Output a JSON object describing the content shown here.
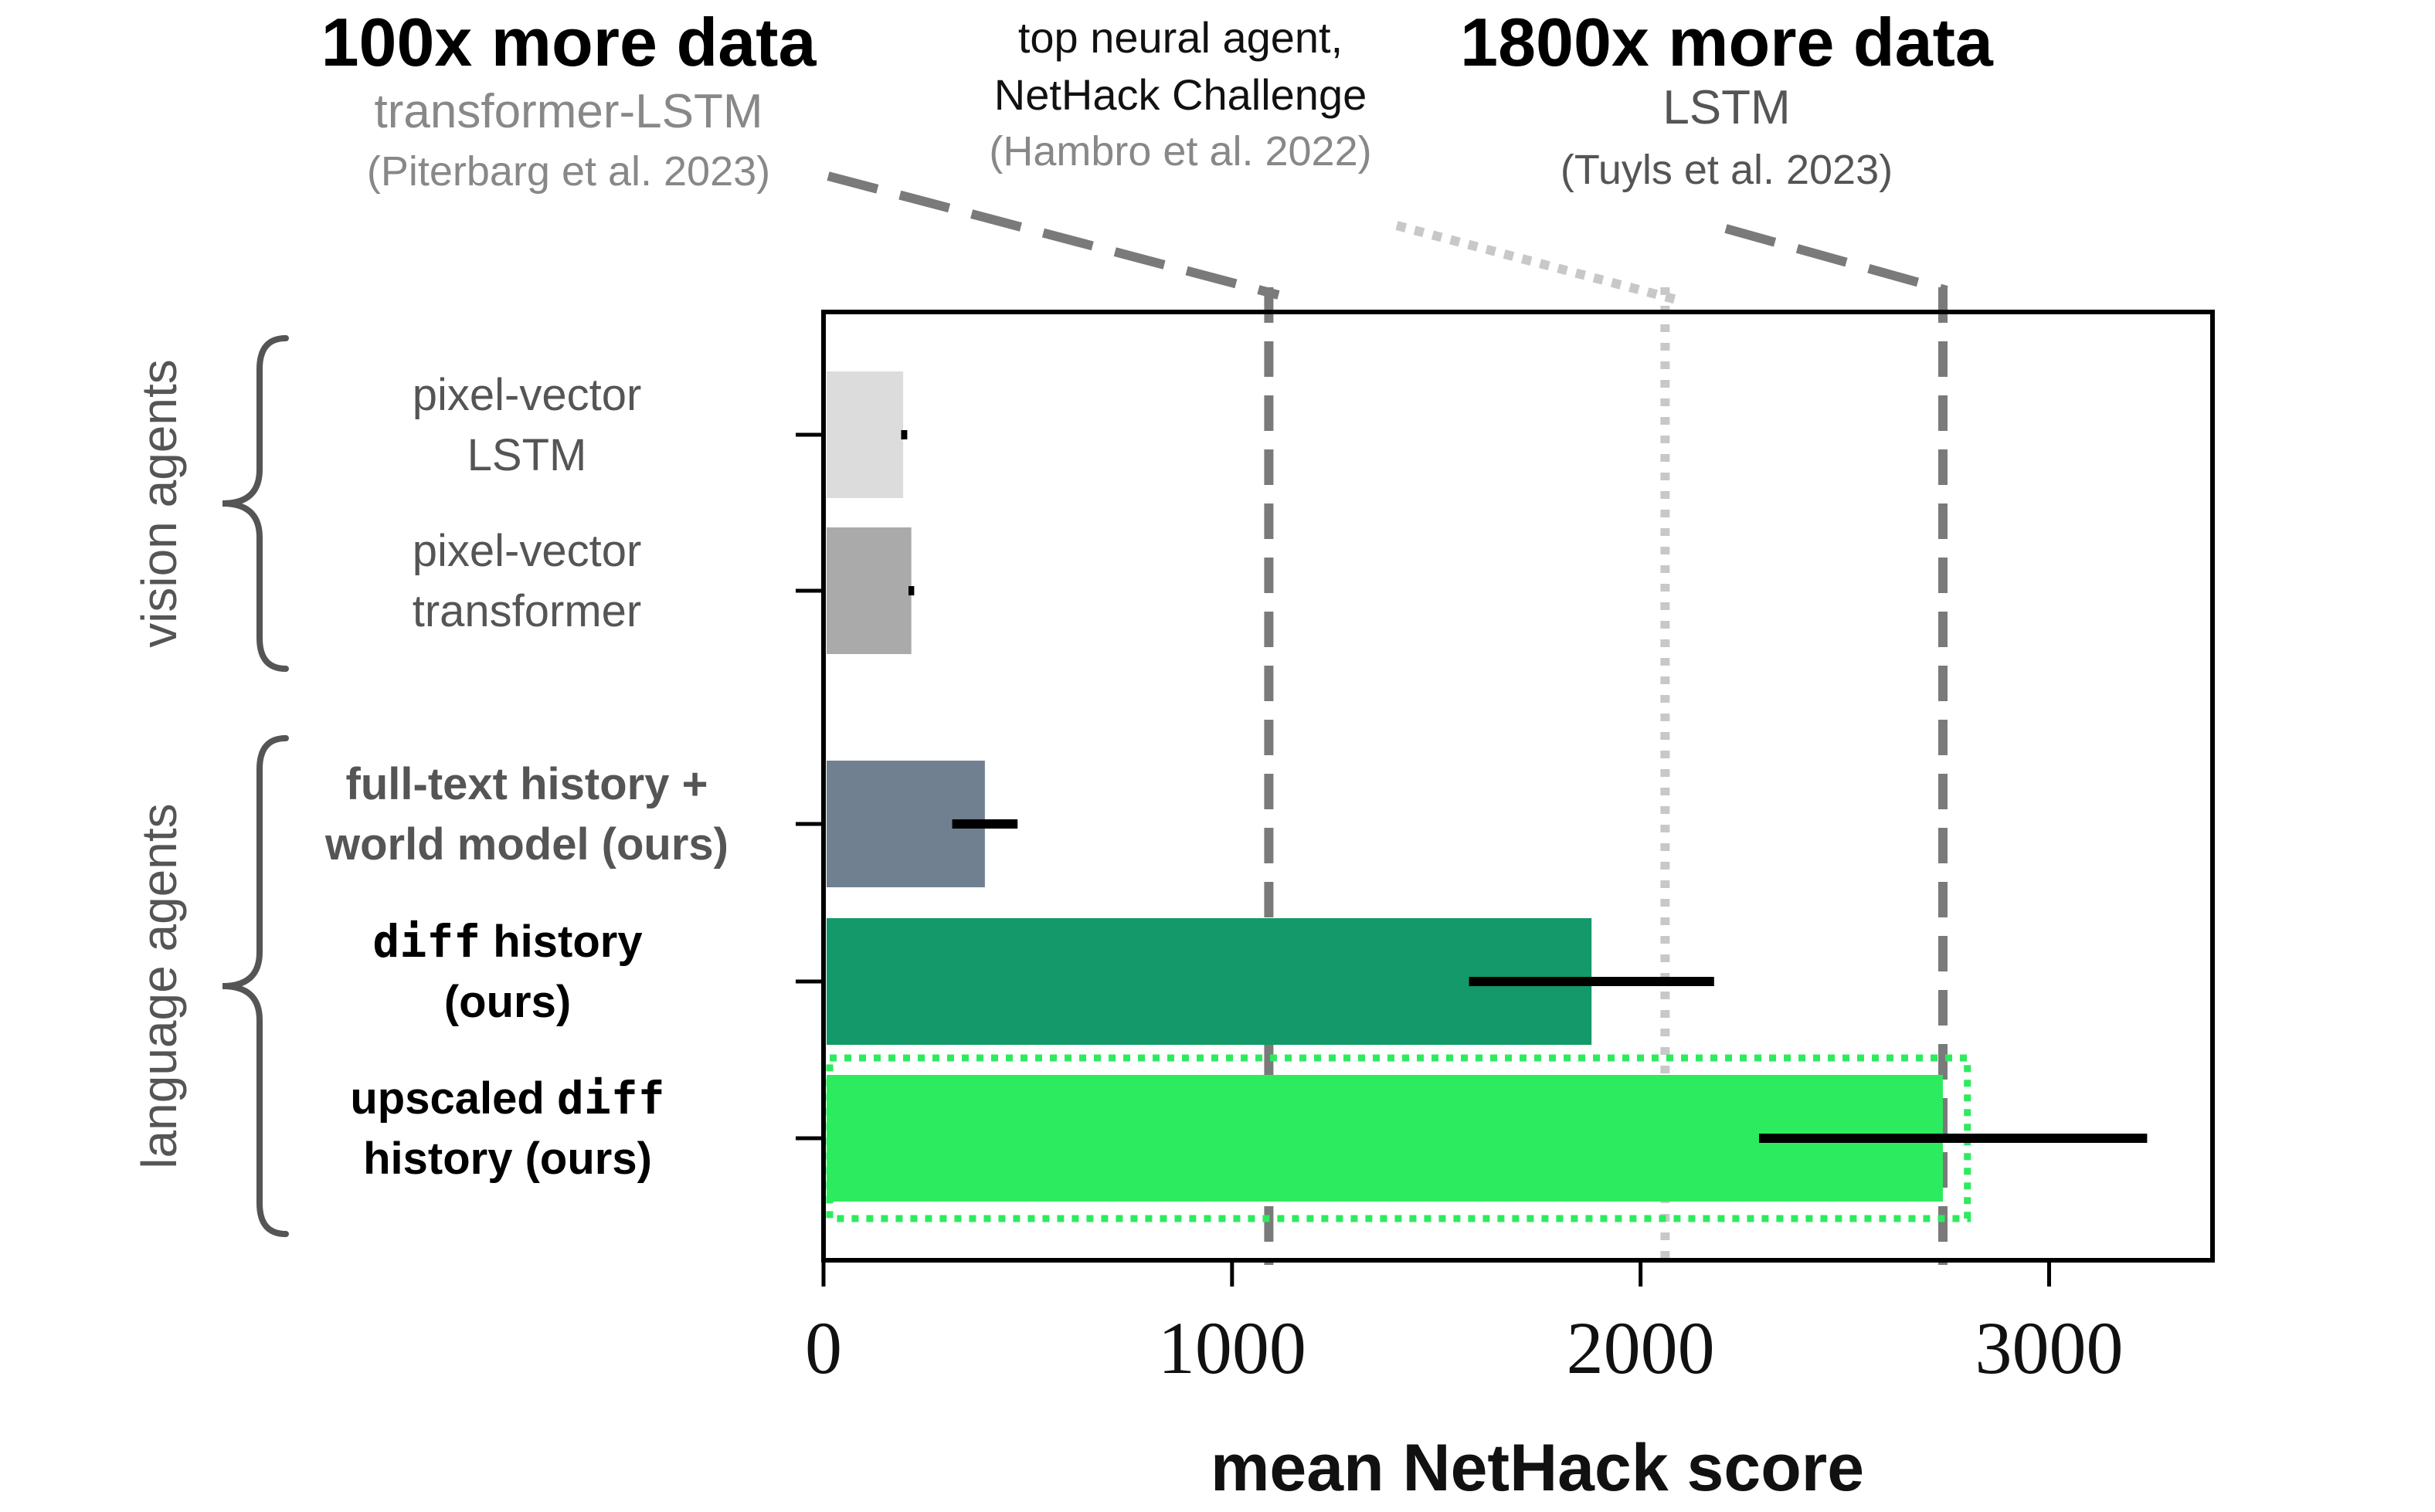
{
  "chart_data": {
    "type": "bar",
    "orientation": "horizontal",
    "xlabel": "mean NetHack score",
    "xlim": [
      0,
      3400
    ],
    "xticks": [
      0,
      1000,
      2000,
      3000
    ],
    "tick_labels": [
      "0",
      "1000",
      "2000",
      "3000"
    ],
    "groups": [
      {
        "label": "vision agents",
        "bars": [
          0,
          1
        ]
      },
      {
        "label": "language agents",
        "bars": [
          2,
          3,
          4
        ]
      }
    ],
    "bars": [
      {
        "label_lines": [
          "pixel-vector",
          "LSTM"
        ],
        "value": 195,
        "err_low": 190,
        "err_high": 205,
        "color": "#dcdcdc",
        "label_color": "#555555",
        "bold": false
      },
      {
        "label_lines": [
          "pixel-vector",
          "transformer"
        ],
        "value": 215,
        "err_low": 208,
        "err_high": 222,
        "color": "#aaaaaa",
        "label_color": "#555555",
        "bold": false
      },
      {
        "label_lines": [
          "full-text history +",
          "world model (ours)"
        ],
        "value": 395,
        "err_low": 315,
        "err_high": 475,
        "color": "#708090",
        "label_color": "#555555",
        "bold": true
      },
      {
        "label_lines": [
          [
            "diff",
            " history"
          ],
          "(ours)"
        ],
        "value": 1880,
        "err_low": 1580,
        "err_high": 2180,
        "color": "#14996a",
        "label_color": "#000000",
        "bold": true
      },
      {
        "label_lines": [
          [
            "upscaled ",
            "diff"
          ],
          "history (ours)"
        ],
        "value": 2740,
        "err_low": 2290,
        "err_high": 3240,
        "color": "#2deb5e",
        "label_color": "#000000",
        "bold": true,
        "highlight_box": [
          0,
          2800
        ]
      }
    ],
    "reference_lines": [
      {
        "value": 1090,
        "style": "dashed",
        "color": "#7a7a7a",
        "headline": "100x more data",
        "model": "transformer-LSTM",
        "citation": "(Piterbarg et al. 2023)"
      },
      {
        "value": 2060,
        "style": "dotted",
        "color": "#c8c8c8",
        "headline": "",
        "model": "top neural agent,",
        "model2": "NetHack Challenge",
        "citation": "(Hambro et al. 2022)"
      },
      {
        "value": 2740,
        "style": "dashed",
        "color": "#7a7a7a",
        "headline": "1800x more data",
        "model": "LSTM",
        "citation": "(Tuyls et al. 2023)"
      }
    ]
  }
}
